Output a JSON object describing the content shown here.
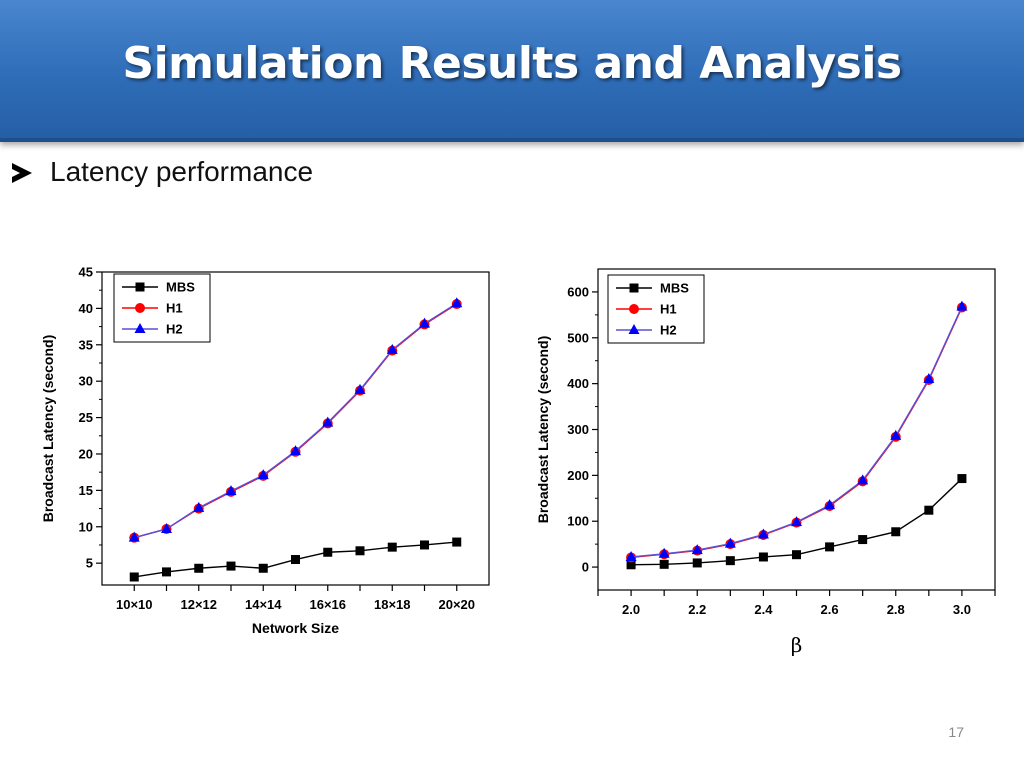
{
  "slide": {
    "title": "Simulation Results and Analysis",
    "bullet": "Latency performance",
    "page_number": "17"
  },
  "colors": {
    "title_bar": "#2f6db8",
    "mbs": "#000000",
    "h1": "#ff0000",
    "h2": "#0000ff",
    "h2_line": "#5a4fd8"
  },
  "chart_data": [
    {
      "type": "line",
      "xlabel": "Network Size",
      "ylabel": "Broadcast Latency (second)",
      "x": [
        10,
        11,
        12,
        13,
        14,
        15,
        16,
        17,
        18,
        19,
        20
      ],
      "xlim": [
        9,
        21
      ],
      "xticks": [
        10,
        11,
        12,
        13,
        14,
        15,
        16,
        17,
        18,
        19,
        20
      ],
      "xtick_labels": [
        {
          "x": 10,
          "label": "10×10"
        },
        {
          "x": 12,
          "label": "12×12"
        },
        {
          "x": 14,
          "label": "14×14"
        },
        {
          "x": 16,
          "label": "16×16"
        },
        {
          "x": 18,
          "label": "18×18"
        },
        {
          "x": 20,
          "label": "20×20"
        }
      ],
      "ylim": [
        2,
        45
      ],
      "yticks": [
        5,
        10,
        15,
        20,
        25,
        30,
        35,
        40,
        45
      ],
      "legend": "top-left",
      "series": [
        {
          "name": "MBS",
          "marker": "square",
          "color": "#000000",
          "values": [
            3.1,
            3.8,
            4.3,
            4.6,
            4.3,
            5.5,
            6.5,
            6.7,
            7.2,
            7.5,
            7.9
          ]
        },
        {
          "name": "H1",
          "marker": "circle",
          "color": "#ff0000",
          "values": [
            8.5,
            9.7,
            12.5,
            14.8,
            17.0,
            20.3,
            24.2,
            28.7,
            34.2,
            37.8,
            40.6
          ]
        },
        {
          "name": "H2",
          "marker": "triangle",
          "color": "#0000ff",
          "values": [
            8.5,
            9.7,
            12.6,
            14.9,
            17.1,
            20.4,
            24.3,
            28.8,
            34.3,
            37.9,
            40.7
          ]
        }
      ]
    },
    {
      "type": "line",
      "xlabel": "β",
      "ylabel": "Broadcast Latency (second)",
      "x": [
        2.0,
        2.1,
        2.2,
        2.3,
        2.4,
        2.5,
        2.6,
        2.7,
        2.8,
        2.9,
        3.0
      ],
      "xlim": [
        1.9,
        3.1
      ],
      "xticks": [
        1.9,
        2.0,
        2.1,
        2.2,
        2.3,
        2.4,
        2.5,
        2.6,
        2.7,
        2.8,
        2.9,
        3.0,
        3.1
      ],
      "xtick_labels": [
        {
          "x": 2.0,
          "label": "2.0"
        },
        {
          "x": 2.2,
          "label": "2.2"
        },
        {
          "x": 2.4,
          "label": "2.4"
        },
        {
          "x": 2.6,
          "label": "2.6"
        },
        {
          "x": 2.8,
          "label": "2.8"
        },
        {
          "x": 3.0,
          "label": "3.0"
        }
      ],
      "ylim": [
        -50,
        650
      ],
      "yticks": [
        0,
        100,
        200,
        300,
        400,
        500,
        600
      ],
      "legend": "top-left",
      "series": [
        {
          "name": "MBS",
          "marker": "square",
          "color": "#000000",
          "values": [
            5,
            6,
            9,
            14,
            22,
            27,
            44,
            60,
            77,
            124,
            193
          ]
        },
        {
          "name": "H1",
          "marker": "circle",
          "color": "#ff0000",
          "values": [
            21,
            28,
            36,
            50,
            70,
            97,
            133,
            187,
            284,
            408,
            566
          ]
        },
        {
          "name": "H2",
          "marker": "triangle",
          "color": "#0000ff",
          "values": [
            22,
            29,
            37,
            51,
            71,
            98,
            135,
            189,
            286,
            410,
            568
          ]
        }
      ]
    }
  ]
}
